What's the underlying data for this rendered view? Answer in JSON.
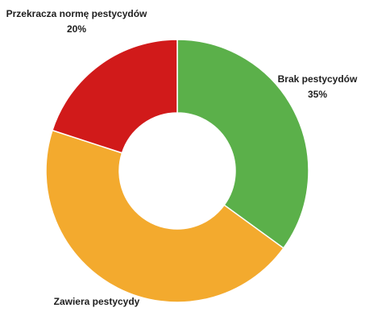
{
  "chart_data": {
    "type": "pie",
    "donut": true,
    "slices": [
      {
        "label": "Brak pestycydów",
        "value": 35,
        "value_label": "35%",
        "color": "#5bb04a"
      },
      {
        "label": "Zawiera pestycydy",
        "value": 45,
        "value_label": "",
        "color": "#f3aa2e"
      },
      {
        "label": "Przekracza normę pestycydów",
        "value": 20,
        "value_label": "20%",
        "color": "#d11a1a"
      }
    ],
    "start": "12 o'clock",
    "direction": "clockwise",
    "legend": "none"
  }
}
